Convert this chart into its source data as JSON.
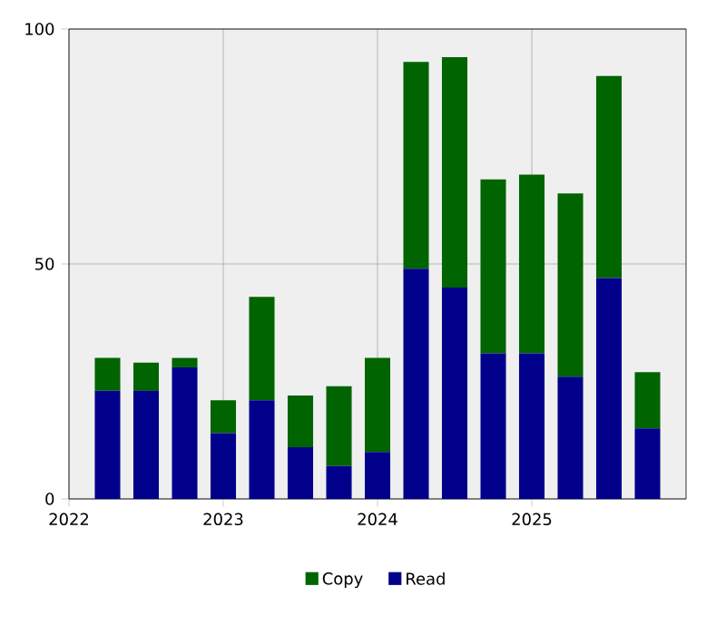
{
  "chart_data": {
    "type": "bar",
    "stacked": true,
    "x": [
      "2022-04",
      "2022-07",
      "2022-10",
      "2023-01",
      "2023-04",
      "2023-07",
      "2023-10",
      "2024-01",
      "2024-04",
      "2024-07",
      "2024-10",
      "2025-01",
      "2025-04",
      "2025-07",
      "2025-10"
    ],
    "series": [
      {
        "name": "Read",
        "color": "#00008b",
        "values": [
          23,
          23,
          28,
          14,
          21,
          11,
          7,
          10,
          49,
          45,
          31,
          31,
          26,
          47,
          15
        ]
      },
      {
        "name": "Copy",
        "color": "#006400",
        "values": [
          7,
          6,
          2,
          7,
          22,
          11,
          17,
          20,
          44,
          49,
          37,
          38,
          39,
          43,
          12
        ]
      }
    ],
    "xlim": [
      "2022",
      "2026"
    ],
    "xticks": [
      "2022",
      "2023",
      "2024",
      "2025"
    ],
    "ylim": [
      0,
      100
    ],
    "yticks": [
      0,
      50,
      100
    ],
    "grid": true,
    "legend": "bottom"
  }
}
